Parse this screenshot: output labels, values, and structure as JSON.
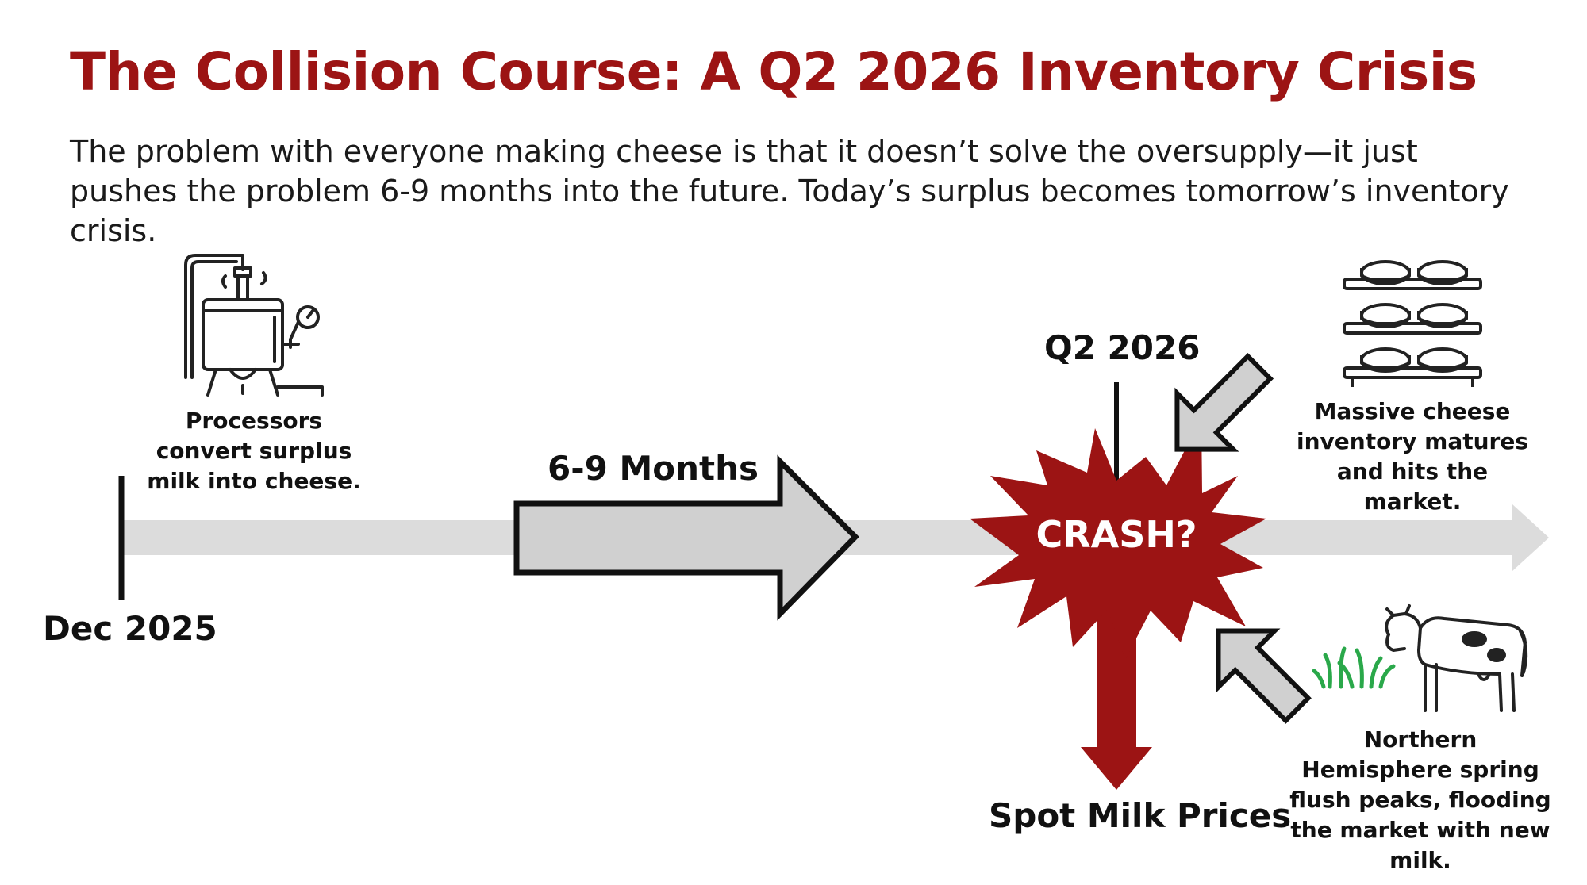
{
  "title": "The Collision Course: A Q2 2026 Inventory Crisis",
  "subtitle": "The problem with everyone making cheese is that it doesn’t solve the oversupply—it just pushes the problem 6-9 months into the future. Today’s surplus becomes tomorrow’s inventory crisis.",
  "timeline": {
    "start_label": "Dec 2025",
    "interval_label": "6-9 Months",
    "event_label": "Q2 2026",
    "crash_label": "CRASH?",
    "down_label": "Spot Milk Prices"
  },
  "notes": {
    "processors": "Processors convert surplus milk into cheese.",
    "inventory": "Massive cheese inventory matures and hits the market.",
    "spring_flush": "Northern Hemisphere spring flush peaks, flooding the market with new milk."
  },
  "icons": {
    "processor": "milk-processing-vat-icon",
    "inventory": "cheese-wheel-shelves-icon",
    "cow": "dairy-cow-icon",
    "grass": "grass-icon"
  },
  "colors": {
    "accent": "#9c1414",
    "timeline": "#dcdcdc",
    "arrow_fill": "#d0d0d0",
    "grass": "#2aa84a"
  }
}
